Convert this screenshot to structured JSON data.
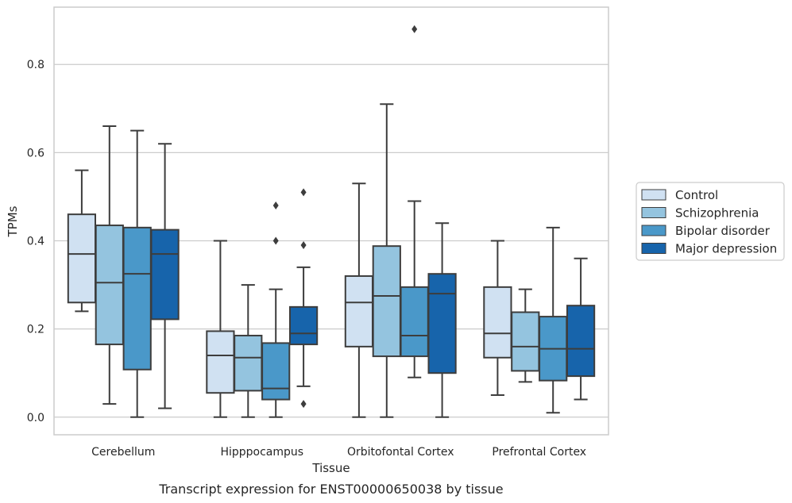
{
  "chart_data": {
    "type": "box",
    "caption": "Transcript expression for ENST00000650038 by tissue",
    "xlabel": "Tissue",
    "ylabel": "TPMs",
    "ylim": [
      -0.04,
      0.93
    ],
    "yticks": [
      0.0,
      0.2,
      0.4,
      0.6,
      0.8
    ],
    "ytick_labels": [
      "0.0",
      "0.2",
      "0.4",
      "0.6",
      "0.8"
    ],
    "grid": "horizontal",
    "legend_position": "right",
    "categories": [
      "Cerebellum",
      "Hipppocampus",
      "Orbitofontal Cortex",
      "Prefrontal Cortex"
    ],
    "series": [
      {
        "name": "Control",
        "color": "#d0e1f2",
        "boxes": [
          {
            "whislo": 0.24,
            "q1": 0.26,
            "med": 0.37,
            "q3": 0.46,
            "whishi": 0.56,
            "fliers": []
          },
          {
            "whislo": 0.0,
            "q1": 0.055,
            "med": 0.14,
            "q3": 0.195,
            "whishi": 0.4,
            "fliers": []
          },
          {
            "whislo": 0.0,
            "q1": 0.16,
            "med": 0.26,
            "q3": 0.32,
            "whishi": 0.53,
            "fliers": []
          },
          {
            "whislo": 0.05,
            "q1": 0.135,
            "med": 0.19,
            "q3": 0.295,
            "whishi": 0.4,
            "fliers": []
          }
        ]
      },
      {
        "name": "Schizophrenia",
        "color": "#94c4df",
        "boxes": [
          {
            "whislo": 0.03,
            "q1": 0.165,
            "med": 0.305,
            "q3": 0.435,
            "whishi": 0.66,
            "fliers": []
          },
          {
            "whislo": 0.0,
            "q1": 0.06,
            "med": 0.135,
            "q3": 0.185,
            "whishi": 0.3,
            "fliers": []
          },
          {
            "whislo": 0.0,
            "q1": 0.138,
            "med": 0.275,
            "q3": 0.388,
            "whishi": 0.71,
            "fliers": []
          },
          {
            "whislo": 0.08,
            "q1": 0.105,
            "med": 0.16,
            "q3": 0.238,
            "whishi": 0.29,
            "fliers": []
          }
        ]
      },
      {
        "name": "Bipolar disorder",
        "color": "#4a98c9",
        "boxes": [
          {
            "whislo": 0.0,
            "q1": 0.108,
            "med": 0.325,
            "q3": 0.43,
            "whishi": 0.65,
            "fliers": []
          },
          {
            "whislo": 0.0,
            "q1": 0.04,
            "med": 0.065,
            "q3": 0.168,
            "whishi": 0.29,
            "fliers": [
              0.4,
              0.48
            ]
          },
          {
            "whislo": 0.09,
            "q1": 0.138,
            "med": 0.185,
            "q3": 0.295,
            "whishi": 0.49,
            "fliers": [
              0.88
            ]
          },
          {
            "whislo": 0.01,
            "q1": 0.083,
            "med": 0.155,
            "q3": 0.228,
            "whishi": 0.43,
            "fliers": []
          }
        ]
      },
      {
        "name": "Major depression",
        "color": "#1764ab",
        "boxes": [
          {
            "whislo": 0.02,
            "q1": 0.222,
            "med": 0.37,
            "q3": 0.425,
            "whishi": 0.62,
            "fliers": []
          },
          {
            "whislo": 0.07,
            "q1": 0.165,
            "med": 0.19,
            "q3": 0.25,
            "whishi": 0.34,
            "fliers": [
              0.03,
              0.39,
              0.51
            ]
          },
          {
            "whislo": 0.0,
            "q1": 0.1,
            "med": 0.28,
            "q3": 0.325,
            "whishi": 0.44,
            "fliers": []
          },
          {
            "whislo": 0.04,
            "q1": 0.093,
            "med": 0.155,
            "q3": 0.253,
            "whishi": 0.36,
            "fliers": []
          }
        ]
      }
    ]
  }
}
